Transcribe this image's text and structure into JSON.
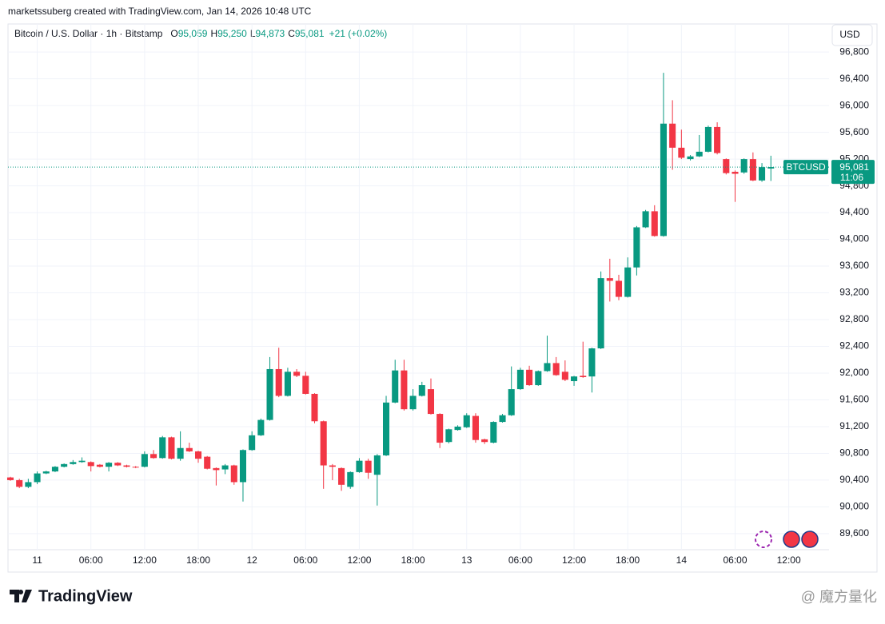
{
  "header": {
    "credit": "marketssuberg created with TradingView.com, Jan 14, 2026 10:48 UTC",
    "symbol": "Bitcoin / U.S. Dollar · 1h · Bitstamp",
    "ohlc": [
      {
        "key": "O",
        "text": "95,059"
      },
      {
        "key": "H",
        "text": "95,250"
      },
      {
        "key": "L",
        "text": "94,873"
      },
      {
        "key": "C",
        "text": "95,081"
      }
    ],
    "change": "+21 (+0.02%)",
    "currency": "USD"
  },
  "chart_data": {
    "type": "candlestick",
    "categories": [
      null,
      null,
      null,
      "11",
      null,
      null,
      null,
      null,
      null,
      "06:00",
      null,
      null,
      null,
      null,
      null,
      "12:00",
      null,
      null,
      null,
      null,
      null,
      "18:00",
      null,
      null,
      null,
      null,
      null,
      "12",
      null,
      null,
      null,
      null,
      null,
      "06:00",
      null,
      null,
      null,
      null,
      null,
      "12:00",
      null,
      null,
      null,
      null,
      null,
      "18:00",
      null,
      null,
      null,
      null,
      null,
      "13",
      null,
      null,
      null,
      null,
      null,
      "06:00",
      null,
      null,
      null,
      null,
      null,
      "12:00",
      null,
      null,
      null,
      null,
      null,
      "18:00",
      null,
      null,
      null,
      null,
      null,
      "14",
      null,
      null,
      null,
      null,
      null,
      "06:00",
      null,
      null,
      null,
      null,
      null,
      "12:00",
      null,
      null,
      null,
      null
    ],
    "open": [
      90440,
      90400,
      90300,
      90370,
      90500,
      90530,
      90600,
      90640,
      90670,
      90670,
      90630,
      90600,
      90660,
      90620,
      90600,
      90600,
      90790,
      90730,
      91040,
      90720,
      90880,
      90830,
      90750,
      90580,
      90560,
      90620,
      90370,
      90850,
      91070,
      91300,
      92060,
      91660,
      92020,
      91960,
      91690,
      91280,
      90620,
      90580,
      90300,
      90520,
      90690,
      90480,
      90770,
      91560,
      92040,
      91460,
      91660,
      91760,
      91390,
      90970,
      91150,
      91190,
      91360,
      91010,
      90960,
      91270,
      91370,
      91760,
      92050,
      91820,
      92030,
      92150,
      92020,
      91880,
      91960,
      91950,
      92370,
      93420,
      93380,
      93140,
      93580,
      94180,
      94420,
      94050,
      95730,
      95370,
      95200,
      95240,
      95310,
      95680,
      95200,
      95010,
      95000,
      95200,
      94880,
      95059,
      null,
      null,
      null,
      null,
      null,
      null
    ],
    "high": [
      90450,
      90420,
      90420,
      90530,
      90540,
      90610,
      90650,
      90700,
      90740,
      90680,
      90640,
      90670,
      90670,
      90630,
      90610,
      90830,
      90850,
      91060,
      91050,
      91130,
      90960,
      90840,
      90760,
      90590,
      90640,
      90630,
      90860,
      91130,
      91320,
      92240,
      92380,
      92080,
      92060,
      92020,
      91700,
      91290,
      90640,
      90590,
      90530,
      90730,
      90720,
      90790,
      91660,
      92200,
      92200,
      91760,
      91870,
      91920,
      91400,
      91170,
      91220,
      91400,
      91400,
      91020,
      91280,
      91390,
      92100,
      92080,
      92110,
      92040,
      92560,
      92240,
      92190,
      91960,
      92470,
      92380,
      93520,
      93710,
      93470,
      93730,
      94200,
      94440,
      94510,
      96490,
      96080,
      95640,
      95260,
      95560,
      95700,
      95750,
      95210,
      95030,
      95210,
      95300,
      95140,
      95250,
      null,
      null,
      null,
      null,
      null,
      null
    ],
    "low": [
      90390,
      90280,
      90280,
      90340,
      90490,
      90520,
      90590,
      90630,
      90660,
      90530,
      90590,
      90530,
      90610,
      90590,
      90580,
      90590,
      90720,
      90720,
      90710,
      90690,
      90820,
      90660,
      90560,
      90320,
      90490,
      90330,
      90080,
      90840,
      91060,
      91290,
      91640,
      91650,
      91940,
      91680,
      91250,
      90270,
      90400,
      90240,
      90270,
      90510,
      90420,
      90020,
      90760,
      91550,
      91440,
      91440,
      91650,
      91380,
      90880,
      90950,
      91140,
      91180,
      90960,
      90940,
      90950,
      91260,
      91360,
      91750,
      91810,
      91810,
      92020,
      91960,
      91880,
      91810,
      91930,
      91710,
      92360,
      93070,
      93090,
      93130,
      93460,
      94170,
      94040,
      94040,
      95040,
      95200,
      95180,
      95230,
      95300,
      95270,
      94970,
      94560,
      94980,
      94870,
      94860,
      94873,
      null,
      null,
      null,
      null,
      null,
      null
    ],
    "close": [
      90400,
      90300,
      90370,
      90500,
      90530,
      90600,
      90640,
      90670,
      90690,
      90610,
      90600,
      90660,
      90620,
      90600,
      90590,
      90790,
      90730,
      91040,
      90720,
      90880,
      90830,
      90720,
      90570,
      90550,
      90620,
      90370,
      90850,
      91070,
      91300,
      92060,
      91660,
      92020,
      91960,
      91690,
      91280,
      90620,
      90600,
      90330,
      90520,
      90690,
      90510,
      90770,
      91560,
      92040,
      91460,
      91660,
      91820,
      91390,
      90960,
      91160,
      91200,
      91370,
      91000,
      90970,
      91270,
      91370,
      91760,
      92050,
      91820,
      92030,
      92150,
      91970,
      91900,
      91950,
      91940,
      92370,
      93420,
      93380,
      93140,
      93580,
      94180,
      94420,
      94050,
      95730,
      95370,
      95220,
      95240,
      95310,
      95680,
      95290,
      94990,
      94980,
      95200,
      94880,
      95080,
      95081,
      null,
      null,
      null,
      null,
      null,
      null
    ],
    "up_color": "#089981",
    "down_color": "#f23645",
    "ylim": [
      89360,
      97220
    ],
    "yticks": [
      {
        "value": 89600,
        "label": "89,600"
      },
      {
        "value": 90000,
        "label": "90,000"
      },
      {
        "value": 90400,
        "label": "90,400"
      },
      {
        "value": 90800,
        "label": "90,800"
      },
      {
        "value": 91200,
        "label": "91,200"
      },
      {
        "value": 91600,
        "label": "91,600"
      },
      {
        "value": 92000,
        "label": "92,000"
      },
      {
        "value": 92400,
        "label": "92,400"
      },
      {
        "value": 92800,
        "label": "92,800"
      },
      {
        "value": 93200,
        "label": "93,200"
      },
      {
        "value": 93600,
        "label": "93,600"
      },
      {
        "value": 94000,
        "label": "94,000"
      },
      {
        "value": 94400,
        "label": "94,400"
      },
      {
        "value": 94800,
        "label": "94,800"
      },
      {
        "value": 95200,
        "label": "95,200"
      },
      {
        "value": 95600,
        "label": "95,600"
      },
      {
        "value": 96000,
        "label": "96,000"
      },
      {
        "value": 96400,
        "label": "96,400"
      },
      {
        "value": 96800,
        "label": "96,800"
      }
    ],
    "grid": true,
    "price_tag": {
      "symbol": "BTCUSD",
      "price": "95,081",
      "countdown": "11:06"
    }
  },
  "footer": {
    "logo": "TradingView",
    "watermark": "@ 魔方量化"
  }
}
